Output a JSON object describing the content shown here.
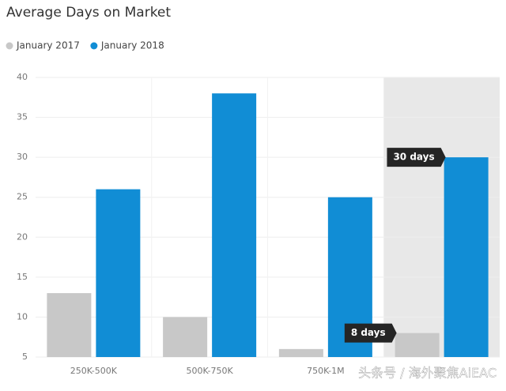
{
  "chart_data": {
    "type": "bar",
    "title": "Average Days on Market",
    "categories": [
      "250K-500K",
      "500K-750K",
      "750K-1M",
      null
    ],
    "series": [
      {
        "name": "January 2017",
        "color": "#c8c8c8",
        "values": [
          13,
          10,
          6,
          8
        ],
        "value_labels": [
          null,
          null,
          null,
          "8 days"
        ]
      },
      {
        "name": "January 2018",
        "color": "#118dd5",
        "values": [
          26,
          38,
          25,
          30
        ],
        "value_labels": [
          null,
          null,
          null,
          "30 days"
        ]
      }
    ],
    "ylim": [
      5,
      40
    ],
    "yticks": [
      5,
      10,
      15,
      20,
      25,
      30,
      35,
      40
    ],
    "grid": true,
    "highlight": 3,
    "watermark": "头条号 / 海外聚焦AiEAC"
  }
}
